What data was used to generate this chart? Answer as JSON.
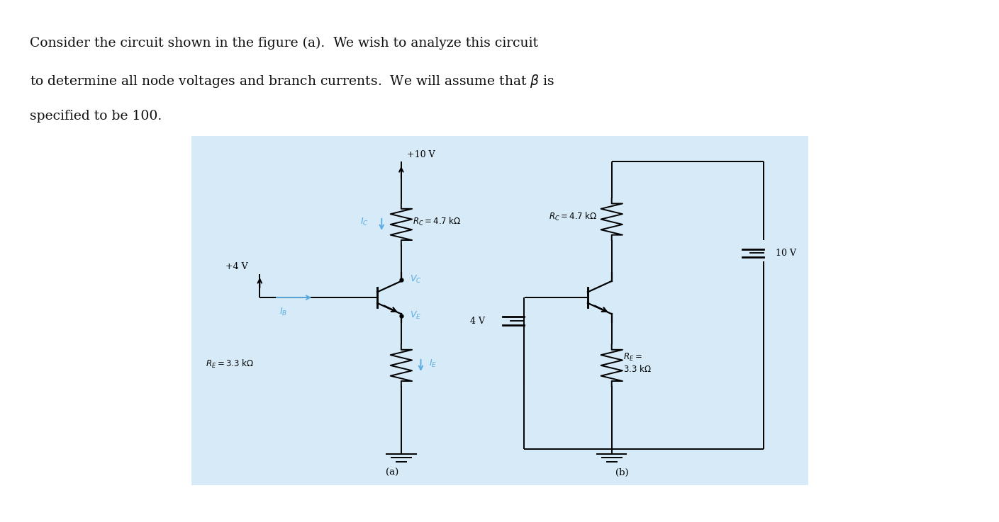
{
  "text_line1": "Consider the circuit shown in the figure (a).  We wish to analyze this circuit",
  "text_line2": "to determine all node voltages and branch currents.  We will assume that $\\beta$ is",
  "text_line3": "specified to be 100.",
  "bg_color": "#d6eaf8",
  "blue_color": "#5dade2",
  "black": "#000000",
  "label_a": "(a)",
  "label_b": "(b)"
}
